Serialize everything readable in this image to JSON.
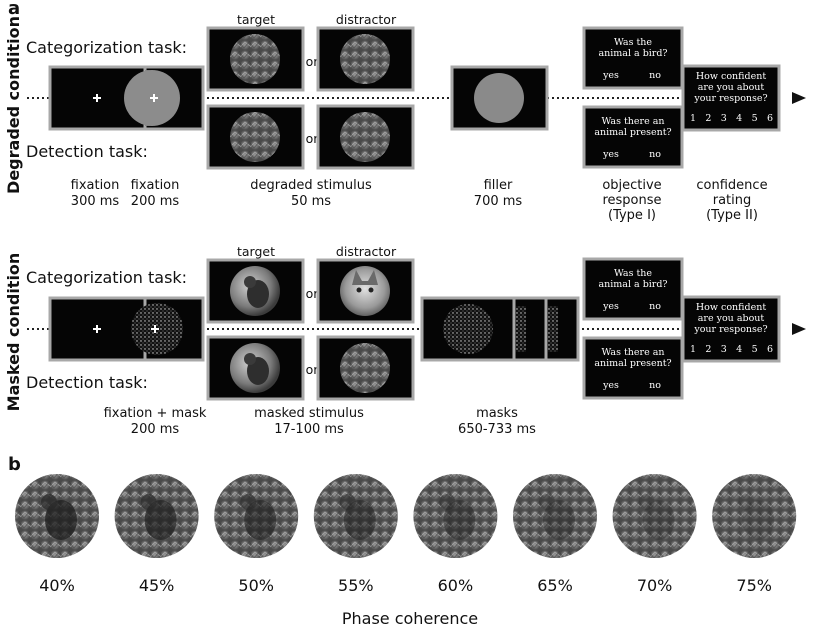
{
  "panel_labels": {
    "a": "a",
    "b": "b"
  },
  "degraded": {
    "side_label": "Degraded condition",
    "categorization_label": "Categorization task:",
    "detection_label": "Detection task:",
    "target_label": "target",
    "distractor_label": "distractor",
    "or": "or",
    "question_bird": "Was the|animal a bird?",
    "question_present": "Was there an|animal present?",
    "yes": "yes",
    "no": "no",
    "confidence": "How confident|are you about|your response?",
    "scale": [
      "1",
      "2",
      "3",
      "4",
      "5",
      "6"
    ],
    "timeline": [
      {
        "label": "fixation",
        "time": "300 ms"
      },
      {
        "label": "fixation",
        "time": "200 ms"
      },
      {
        "label": "degraded stimulus",
        "time": "50 ms"
      },
      {
        "label": "filler",
        "time": "700 ms"
      },
      {
        "label": "objective|response|(Type I)",
        "time": ""
      },
      {
        "label": "confidence|rating|(Type II)",
        "time": ""
      }
    ]
  },
  "masked": {
    "side_label": "Masked condition",
    "categorization_label": "Categorization task:",
    "detection_label": "Detection task:",
    "target_label": "target",
    "distractor_label": "distractor",
    "or": "or",
    "question_bird": "Was the|animal a bird?",
    "question_present": "Was there an|animal present?",
    "yes": "yes",
    "no": "no",
    "confidence": "How confident|are you about|your response?",
    "scale": [
      "1",
      "2",
      "3",
      "4",
      "5",
      "6"
    ],
    "timeline": [
      {
        "label": "fixation + mask",
        "time": "200 ms"
      },
      {
        "label": "masked stimulus",
        "time": "17-100 ms"
      },
      {
        "label": "masks",
        "time": "650-733 ms"
      }
    ]
  },
  "coherence": {
    "levels": [
      "40%",
      "45%",
      "50%",
      "55%",
      "60%",
      "65%",
      "70%",
      "75%"
    ],
    "axis_label": "Phase coherence"
  }
}
